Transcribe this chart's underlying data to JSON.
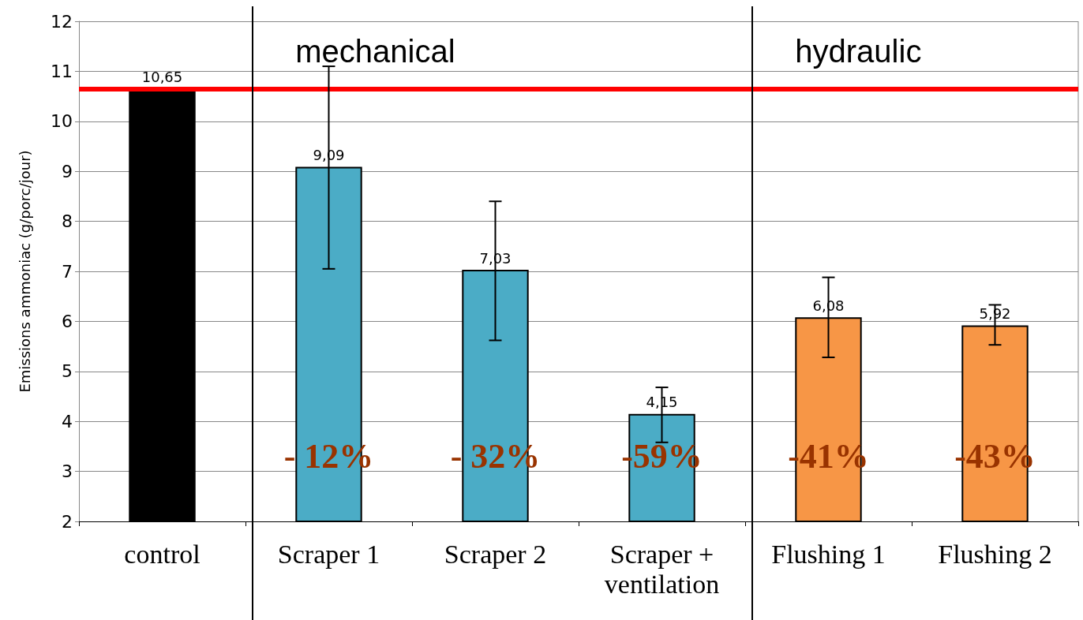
{
  "chart_data": {
    "type": "bar",
    "ylabel": "Emissions ammoniac (g/porc/jour)",
    "categories": [
      "control",
      "Scraper 1",
      "Scraper 2",
      "Scraper +\nventilation",
      "Flushing 1",
      "Flushing 2"
    ],
    "values": [
      10.65,
      9.09,
      7.03,
      4.15,
      6.08,
      5.92
    ],
    "value_labels": [
      "10,65",
      "9,09",
      "7,03",
      "4,15",
      "6,08",
      "5,92"
    ],
    "colors": [
      "#000000",
      "#4bacc6",
      "#4bacc6",
      "#4bacc6",
      "#f79646",
      "#f79646"
    ],
    "errors": [
      null,
      [
        7.05,
        11.1
      ],
      [
        5.62,
        8.4
      ],
      [
        3.58,
        4.68
      ],
      [
        5.28,
        6.88
      ],
      [
        5.53,
        6.33
      ]
    ],
    "ylim": [
      2,
      12
    ],
    "yticks": [
      2,
      3,
      4,
      5,
      6,
      7,
      8,
      9,
      10,
      11,
      12
    ],
    "grid": "y",
    "ref_lines": [
      {
        "axis": "y",
        "value": 10.65,
        "color": "#ff0000"
      }
    ],
    "annotations": [
      "mechanical",
      "hydraulic",
      "- 12%",
      "- 32%",
      "-59%",
      "-41%",
      "-43%"
    ]
  }
}
